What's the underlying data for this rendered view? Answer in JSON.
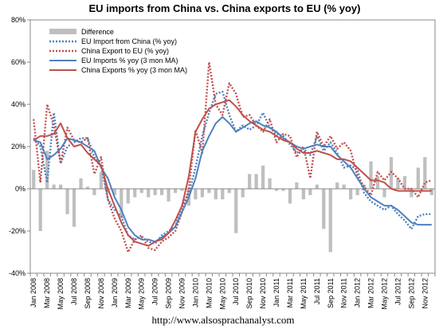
{
  "chart_data": {
    "type": "line",
    "title": "EU imports from China vs. China exports to EU (% yoy)",
    "xlabel": "",
    "ylabel": "",
    "ylim": [
      -40,
      80
    ],
    "ytick_labels": [
      "80%",
      "60%",
      "40%",
      "20%",
      "0%",
      "-20%",
      "-40%"
    ],
    "yticks": [
      80,
      60,
      40,
      20,
      0,
      -20,
      -40
    ],
    "xtick_labels": [
      "Jan 2008",
      "Mar 2008",
      "May 2008",
      "Jul 2008",
      "Sep 2008",
      "Nov 2008",
      "Jan 2009",
      "Mar 2009",
      "May 2009",
      "Jul 2009",
      "Sep 2009",
      "Nov 2009",
      "Jan 2010",
      "Mar 2010",
      "May 2010",
      "Jul 2010",
      "Sep 2010",
      "Nov 2010",
      "Jan 2011",
      "Mar 2011",
      "May 2011",
      "Jul 2011",
      "Sep 2011",
      "Nov 2011",
      "Jan 2012",
      "Mar 2012",
      "May 2012",
      "Jul 2012",
      "Sep 2012",
      "Nov 2012"
    ],
    "n_months": 60,
    "grid": false,
    "legend_position": "top-left",
    "series": [
      {
        "name": "Difference",
        "kind": "bar",
        "color": "#bfbfbf",
        "values": [
          9,
          -20,
          18,
          2,
          2,
          -12,
          -18,
          5,
          1,
          -3,
          8,
          -2,
          -3,
          -14,
          -7,
          -4,
          -2,
          -4,
          -3,
          -3,
          -6,
          -2,
          -1,
          -8,
          -5,
          -4,
          -2,
          -5,
          -5,
          -2,
          -21,
          -4,
          7,
          7,
          11,
          5,
          -1,
          -1,
          -7,
          3,
          -5,
          -3,
          2,
          -19,
          -30,
          3,
          2,
          -5,
          -3,
          2,
          13,
          6,
          -4,
          15,
          5,
          6,
          -4,
          10,
          15,
          -3
        ]
      },
      {
        "name": "EU Import from China (% yoy)",
        "kind": "line",
        "style": "dotted",
        "color": "#4f81bd",
        "values": [
          24,
          20,
          3,
          36,
          12,
          20,
          22,
          24,
          24,
          15,
          11,
          -5,
          -10,
          -13,
          -22,
          -24,
          -23,
          -25,
          -26,
          -22,
          -20,
          -18,
          -8,
          -2,
          10,
          25,
          36,
          45,
          46,
          35,
          27,
          30,
          28,
          30,
          36,
          29,
          26,
          25,
          21,
          17,
          19,
          16,
          25,
          18,
          22,
          17,
          10,
          11,
          9,
          -2,
          -6,
          -8,
          -10,
          -8,
          -12,
          -15,
          -19,
          -13,
          -12,
          -12
        ]
      },
      {
        "name": "China Export to EU (% yoy)",
        "kind": "line",
        "style": "dotted",
        "color": "#c0504d",
        "values": [
          33,
          3,
          40,
          30,
          12,
          29,
          23,
          22,
          24,
          7,
          15,
          -5,
          -14,
          -20,
          -30,
          -24,
          -22,
          -28,
          -29,
          -25,
          -23,
          -20,
          -11,
          0,
          28,
          17,
          60,
          40,
          35,
          50,
          45,
          34,
          35,
          30,
          27,
          33,
          22,
          26,
          25,
          15,
          20,
          5,
          27,
          20,
          25,
          19,
          22,
          18,
          6,
          1,
          -3,
          8,
          4,
          8,
          5,
          0,
          0,
          -4,
          3,
          4
        ]
      },
      {
        "name": "EU Imports % yoy (3 mon MA)",
        "kind": "line",
        "style": "solid",
        "color": "#4f81bd",
        "values": [
          23,
          22,
          14,
          16,
          19,
          24,
          23,
          22,
          20,
          18,
          10,
          5,
          -4,
          -10,
          -18,
          -22,
          -24,
          -24,
          -25,
          -23,
          -21,
          -18,
          -11,
          -4,
          5,
          18,
          25,
          31,
          34,
          31,
          27,
          29,
          31,
          32,
          30,
          29,
          27,
          24,
          22,
          20,
          19,
          20,
          21,
          20,
          20,
          16,
          13,
          10,
          5,
          0,
          -4,
          -6,
          -8,
          -8,
          -10,
          -13,
          -16,
          -17,
          -17,
          -17
        ]
      },
      {
        "name": "China Exports % yoy (3 mon MA)",
        "kind": "line",
        "style": "solid",
        "color": "#c0504d",
        "values": [
          23,
          25,
          25,
          26,
          31,
          24,
          20,
          21,
          17,
          14,
          11,
          0,
          -8,
          -16,
          -22,
          -25,
          -26,
          -27,
          -25,
          -24,
          -21,
          -15,
          -8,
          6,
          27,
          33,
          38,
          40,
          41,
          42,
          39,
          35,
          32,
          30,
          28,
          27,
          25,
          23,
          22,
          19,
          17,
          17,
          18,
          17,
          16,
          14,
          14,
          13,
          10,
          7,
          4,
          4,
          3,
          0,
          -1,
          -1,
          -1,
          -1,
          -1,
          -1
        ]
      }
    ]
  },
  "footer_url": "http://www.alsosprachanalyst.com"
}
